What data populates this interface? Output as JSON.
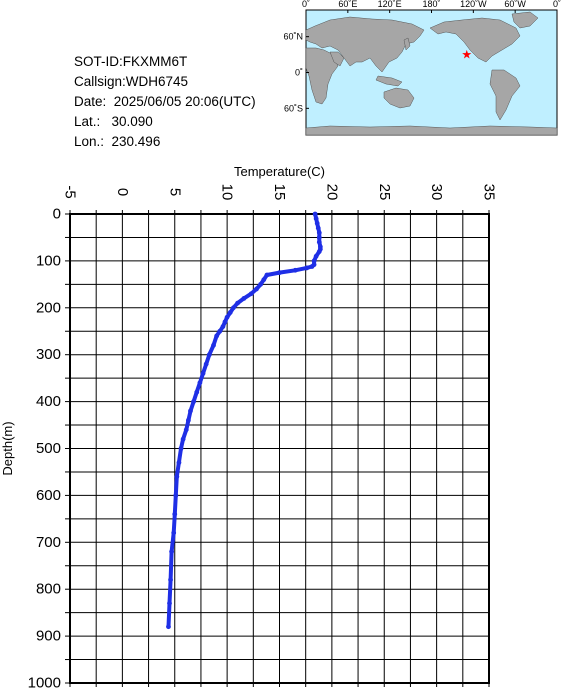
{
  "info": {
    "sot_id": "SOT-ID:FKXMM6T",
    "callsign": "Callsign:WDH6745",
    "date": "Date:  2025/06/05 20:06(UTC)",
    "lat": "Lat.:   30.090",
    "lon": "Lon.:  230.496"
  },
  "map": {
    "lon_labels": [
      "0˚",
      "60˚E",
      "120˚E",
      "180˚",
      "120˚W",
      "60˚W",
      "0˚"
    ],
    "lat_labels": [
      "60˚N",
      "0˚",
      "60˚S"
    ],
    "ocean_color": "#bfefff",
    "land_color": "#a6a6a6",
    "marker_color": "#ff0000",
    "marker_icon": "star-icon",
    "marker_lon": 230.496,
    "marker_lat": 30.09
  },
  "chart_data": {
    "type": "line",
    "xlabel": "Temperature(C)",
    "ylabel": "Depth(m)",
    "xlim": [
      -5,
      35
    ],
    "ylim": [
      0,
      1000
    ],
    "x_ticks": [
      "-5",
      "0",
      "5",
      "10",
      "15",
      "20",
      "25",
      "30",
      "35"
    ],
    "y_ticks": [
      "0",
      "100",
      "200",
      "300",
      "400",
      "500",
      "600",
      "700",
      "800",
      "900",
      "1000"
    ],
    "grid": true,
    "color": "#1f2fe6",
    "series": [
      {
        "x": [
          18.4,
          18.5,
          18.6,
          18.7,
          18.8,
          18.8,
          18.8,
          18.9,
          18.9,
          18.8,
          18.5,
          18.3,
          18.3,
          18.1,
          17.6,
          16.5,
          15.0,
          13.8,
          13.5,
          13.2,
          12.8,
          12.3,
          11.6,
          11.0,
          10.6,
          10.3,
          10.0,
          9.8,
          9.6,
          9.3,
          9.0,
          8.7,
          8.3,
          8.0,
          7.7,
          7.4,
          7.1,
          6.8,
          6.5,
          6.3,
          6.1,
          5.8,
          5.6,
          5.4,
          5.2,
          5.1,
          5.0,
          4.9,
          4.7,
          4.6,
          4.5,
          4.4
        ],
        "y": [
          0,
          10,
          20,
          30,
          40,
          50,
          60,
          70,
          75,
          80,
          90,
          100,
          108,
          112,
          115,
          120,
          125,
          130,
          140,
          150,
          160,
          170,
          180,
          190,
          200,
          210,
          220,
          230,
          240,
          250,
          260,
          280,
          300,
          320,
          340,
          360,
          380,
          400,
          420,
          440,
          460,
          480,
          500,
          530,
          560,
          600,
          640,
          680,
          720,
          780,
          830,
          880
        ]
      }
    ]
  }
}
